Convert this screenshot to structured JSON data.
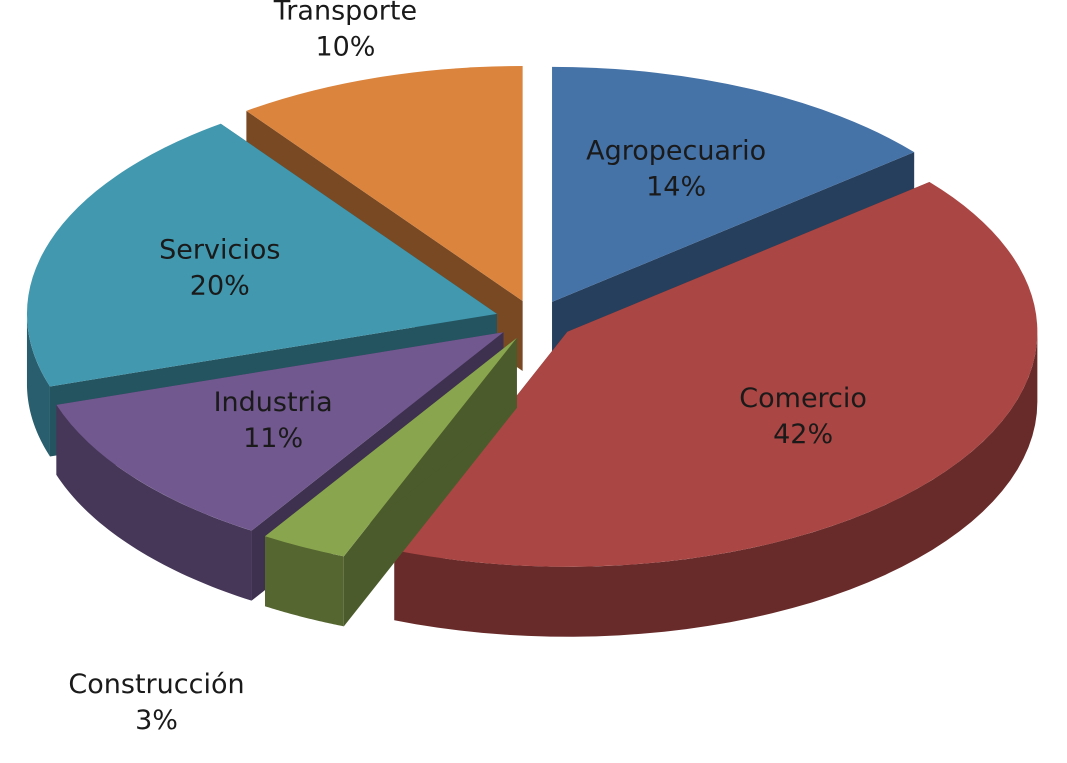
{
  "chart_data": {
    "type": "pie",
    "categories": [
      "Agropecuario",
      "Comercio",
      "Construcción",
      "Industria",
      "Servicios",
      "Transporte"
    ],
    "values": [
      14,
      42,
      3,
      11,
      20,
      10
    ],
    "value_labels": [
      "14%",
      "42%",
      "3%",
      "11%",
      "20%",
      "10%"
    ],
    "colors": [
      "#4572a7",
      "#aa4643",
      "#89a54e",
      "#71588f",
      "#4198af",
      "#db843d"
    ]
  }
}
